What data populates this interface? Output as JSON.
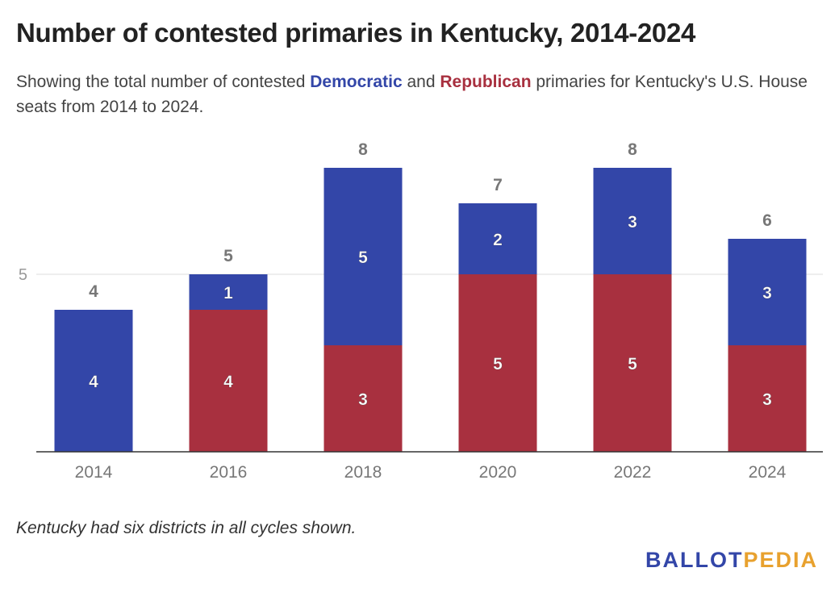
{
  "title": "Number of contested primaries in Kentucky, 2014-2024",
  "subtitle": {
    "pre": "Showing the total number of contested ",
    "dem": "Democratic",
    "mid": " and ",
    "rep": "Republican",
    "post": " primaries for Kentucky's U.S. House seats from 2014 to 2024."
  },
  "note": "Kentucky had six districts in all cycles shown.",
  "logo": {
    "part1": "BALLOT",
    "part2": "PEDIA"
  },
  "colors": {
    "democratic": "#3346a8",
    "republican": "#a8303f",
    "logo_accent": "#e8a12e"
  },
  "chart_data": {
    "type": "bar",
    "stacked": true,
    "categories": [
      "2014",
      "2016",
      "2018",
      "2020",
      "2022",
      "2024"
    ],
    "series": [
      {
        "name": "Republican",
        "values": [
          0,
          4,
          3,
          5,
          5,
          3
        ]
      },
      {
        "name": "Democratic",
        "values": [
          4,
          1,
          5,
          2,
          3,
          3
        ]
      }
    ],
    "totals": [
      4,
      5,
      8,
      7,
      8,
      6
    ],
    "yticks": [
      5
    ],
    "ylim": [
      0,
      8
    ],
    "grid": true,
    "legend": "none"
  }
}
